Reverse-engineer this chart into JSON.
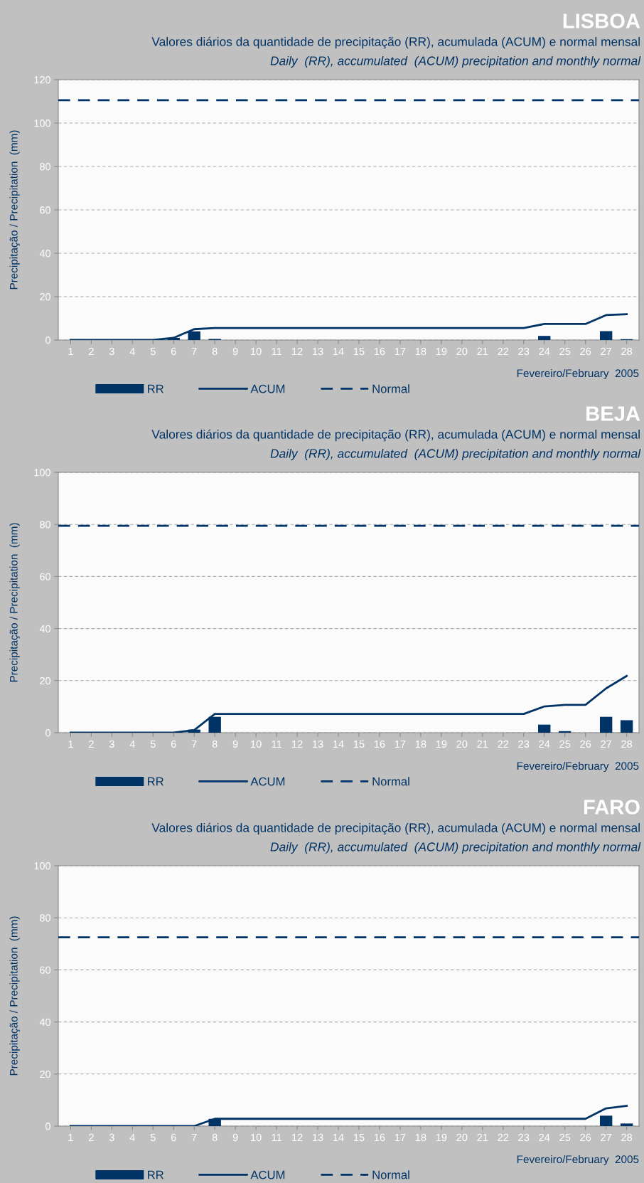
{
  "chart_data": [
    {
      "type": "bar",
      "title": "LISBOA",
      "subtitle": "Valores diários da quantidade de precipitação (RR), acumulada (ACUM) e normal mensal\nDaily  (RR), accumulated  (ACUM) precipitation and monthly normal",
      "xlabel": "Fevereiro/February  2005",
      "ylabel": "Precipitação / Precipitation  (mm)",
      "categories": [
        "1",
        "2",
        "3",
        "4",
        "5",
        "6",
        "7",
        "8",
        "9",
        "10",
        "11",
        "12",
        "13",
        "14",
        "15",
        "16",
        "17",
        "18",
        "19",
        "20",
        "21",
        "22",
        "23",
        "24",
        "25",
        "26",
        "27",
        "28"
      ],
      "series": [
        {
          "name": "RR",
          "type": "bar",
          "color": "#003366",
          "values": [
            0,
            0,
            0,
            0,
            0,
            1.0,
            4.0,
            0.5,
            0,
            0,
            0,
            0,
            0,
            0,
            0,
            0,
            0,
            0,
            0,
            0,
            0,
            0,
            0,
            1.9,
            0,
            0,
            4.1,
            0.4
          ]
        },
        {
          "name": "ACUM",
          "type": "line",
          "color": "#003366",
          "values": [
            0,
            0,
            0,
            0,
            0,
            1.0,
            5.0,
            5.5,
            5.5,
            5.5,
            5.5,
            5.5,
            5.5,
            5.5,
            5.5,
            5.5,
            5.5,
            5.5,
            5.5,
            5.5,
            5.5,
            5.5,
            5.5,
            7.4,
            7.4,
            7.4,
            11.5,
            11.9
          ]
        }
      ],
      "ref_lines": [
        {
          "axis": "y",
          "value": 110.5,
          "label": "Normal",
          "color": "#003366",
          "line_style": "dashed"
        }
      ],
      "ylim": [
        0,
        120
      ],
      "yticks": [
        0,
        20,
        40,
        60,
        80,
        100,
        120
      ],
      "grid": "y",
      "legend": "bottom"
    },
    {
      "type": "bar",
      "title": "BEJA",
      "subtitle": "Valores diários da quantidade de precipitação (RR), acumulada (ACUM) e normal mensal\nDaily  (RR), accumulated  (ACUM) precipitation and monthly normal",
      "xlabel": "Fevereiro/February  2005",
      "ylabel": "Precipitação / Precipitation  (mm)",
      "categories": [
        "1",
        "2",
        "3",
        "4",
        "5",
        "6",
        "7",
        "8",
        "9",
        "10",
        "11",
        "12",
        "13",
        "14",
        "15",
        "16",
        "17",
        "18",
        "19",
        "20",
        "21",
        "22",
        "23",
        "24",
        "25",
        "26",
        "27",
        "28"
      ],
      "series": [
        {
          "name": "RR",
          "type": "bar",
          "color": "#003366",
          "values": [
            0,
            0,
            0,
            0,
            0,
            0,
            1.2,
            6.1,
            0,
            0,
            0,
            0,
            0,
            0,
            0,
            0,
            0,
            0,
            0,
            0,
            0,
            0,
            0,
            3.1,
            0.6,
            0,
            6.1,
            4.8
          ]
        },
        {
          "name": "ACUM",
          "type": "line",
          "color": "#003366",
          "values": [
            0,
            0,
            0,
            0,
            0,
            0,
            1.0,
            7.2,
            7.2,
            7.2,
            7.2,
            7.2,
            7.2,
            7.2,
            7.2,
            7.2,
            7.2,
            7.2,
            7.2,
            7.2,
            7.2,
            7.2,
            7.2,
            10.1,
            10.7,
            10.7,
            17.0,
            21.8
          ]
        }
      ],
      "ref_lines": [
        {
          "axis": "y",
          "value": 79.5,
          "label": "Normal",
          "color": "#003366",
          "line_style": "dashed"
        }
      ],
      "ylim": [
        0,
        100
      ],
      "yticks": [
        0,
        20,
        40,
        60,
        80,
        100
      ],
      "grid": "y",
      "legend": "bottom"
    },
    {
      "type": "bar",
      "title": "FARO",
      "subtitle": "Valores diários da quantidade de precipitação (RR), acumulada (ACUM) e normal mensal\nDaily  (RR), accumulated  (ACUM) precipitation and monthly normal",
      "xlabel": "Fevereiro/February  2005",
      "ylabel": "Precipitação / Precipitation  (mm)",
      "categories": [
        "1",
        "2",
        "3",
        "4",
        "5",
        "6",
        "7",
        "8",
        "9",
        "10",
        "11",
        "12",
        "13",
        "14",
        "15",
        "16",
        "17",
        "18",
        "19",
        "20",
        "21",
        "22",
        "23",
        "24",
        "25",
        "26",
        "27",
        "28"
      ],
      "series": [
        {
          "name": "RR",
          "type": "bar",
          "color": "#003366",
          "values": [
            0,
            0,
            0,
            0,
            0,
            0,
            0,
            2.8,
            0,
            0,
            0,
            0,
            0,
            0,
            0,
            0,
            0,
            0,
            0,
            0,
            0,
            0,
            0,
            0,
            0,
            0,
            4.0,
            1.0
          ]
        },
        {
          "name": "ACUM",
          "type": "line",
          "color": "#003366",
          "values": [
            0,
            0,
            0,
            0,
            0,
            0,
            0,
            2.8,
            2.8,
            2.8,
            2.8,
            2.8,
            2.8,
            2.8,
            2.8,
            2.8,
            2.8,
            2.8,
            2.8,
            2.8,
            2.8,
            2.8,
            2.8,
            2.8,
            2.8,
            2.8,
            6.8,
            7.8
          ]
        }
      ],
      "ref_lines": [
        {
          "axis": "y",
          "value": 72.5,
          "label": "Normal",
          "color": "#003366",
          "line_style": "dashed"
        }
      ],
      "ylim": [
        0,
        100
      ],
      "yticks": [
        0,
        20,
        40,
        60,
        80,
        100
      ],
      "grid": "y",
      "legend": "bottom"
    }
  ]
}
